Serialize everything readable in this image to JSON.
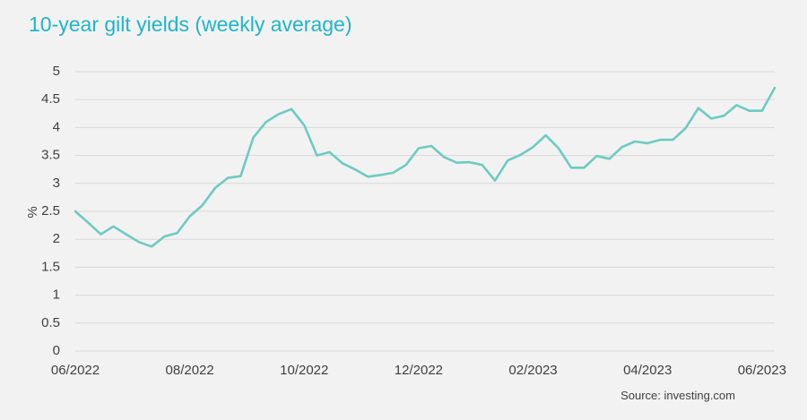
{
  "chart_data": {
    "type": "line",
    "title": "10-year gilt yields (weekly average)",
    "ylabel": "%",
    "xlabel": "",
    "ylim": [
      0,
      5
    ],
    "yticks": [
      "0",
      "0.5",
      "1",
      "1.5",
      "2",
      "2.5",
      "3",
      "3.5",
      "4",
      "4.5",
      "5"
    ],
    "xtick_labels": [
      "06/2022",
      "08/2022",
      "10/2022",
      "12/2022",
      "02/2023",
      "04/2023",
      "06/2023"
    ],
    "xtick_positions": [
      0,
      9,
      18,
      27,
      36,
      45,
      54
    ],
    "grid": true,
    "source": "Source: investing.com",
    "colors": {
      "line": "#6ecbc1",
      "title": "#1fb5c8",
      "grid": "#d9d9d9",
      "text": "#404040"
    },
    "series": [
      {
        "values": [
          2.5,
          2.3,
          2.09,
          2.23,
          2.09,
          1.95,
          1.87,
          2.05,
          2.11,
          2.41,
          2.61,
          2.92,
          3.1,
          3.13,
          3.82,
          4.1,
          4.24,
          4.33,
          4.04,
          3.5,
          3.56,
          3.36,
          3.25,
          3.12,
          3.15,
          3.19,
          3.33,
          3.63,
          3.67,
          3.47,
          3.37,
          3.38,
          3.33,
          3.05,
          3.41,
          3.51,
          3.65,
          3.86,
          3.63,
          3.28,
          3.28,
          3.49,
          3.44,
          3.65,
          3.75,
          3.72,
          3.78,
          3.78,
          3.99,
          4.35,
          4.16,
          4.21,
          4.4,
          4.3,
          4.3,
          4.71
        ]
      }
    ]
  }
}
